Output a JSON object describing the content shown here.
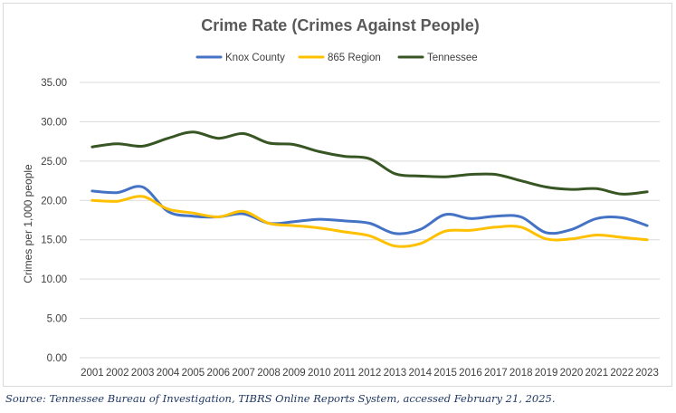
{
  "chart_data": {
    "type": "line",
    "title": "Crime Rate (Crimes Against People)",
    "xlabel": "",
    "ylabel": "Crimes per 1,000 people",
    "ylim": [
      0,
      35
    ],
    "y_ticks": [
      "0.00",
      "5.00",
      "10.00",
      "15.00",
      "20.00",
      "25.00",
      "30.00",
      "35.00"
    ],
    "grid": true,
    "legend_position": "top",
    "categories": [
      "2001",
      "2002",
      "2003",
      "2004",
      "2005",
      "2006",
      "2007",
      "2008",
      "2009",
      "2010",
      "2011",
      "2012",
      "2013",
      "2014",
      "2015",
      "2016",
      "2017",
      "2018",
      "2019",
      "2020",
      "2021",
      "2022",
      "2023"
    ],
    "series": [
      {
        "name": "Knox County",
        "color": "#4472c4",
        "values": [
          21.2,
          21.0,
          21.7,
          18.6,
          18.0,
          17.9,
          18.3,
          17.1,
          17.3,
          17.6,
          17.4,
          17.1,
          15.8,
          16.3,
          18.2,
          17.7,
          18.0,
          17.9,
          15.9,
          16.3,
          17.7,
          17.8,
          16.8
        ]
      },
      {
        "name": "865 Region",
        "color": "#ffc000",
        "values": [
          20.0,
          19.9,
          20.5,
          18.9,
          18.4,
          17.9,
          18.6,
          17.1,
          16.8,
          16.5,
          16.0,
          15.5,
          14.2,
          14.5,
          16.1,
          16.2,
          16.6,
          16.6,
          15.1,
          15.1,
          15.6,
          15.3,
          15.0
        ]
      },
      {
        "name": "Tennessee",
        "color": "#375623",
        "values": [
          26.8,
          27.2,
          26.9,
          27.9,
          28.7,
          27.9,
          28.5,
          27.3,
          27.1,
          26.2,
          25.6,
          25.3,
          23.4,
          23.1,
          23.0,
          23.3,
          23.3,
          22.5,
          21.7,
          21.4,
          21.5,
          20.8,
          21.1
        ]
      }
    ]
  },
  "source": "Source: Tennessee Bureau of Investigation, TIBRS Online Reports System, accessed February 21, 2025."
}
